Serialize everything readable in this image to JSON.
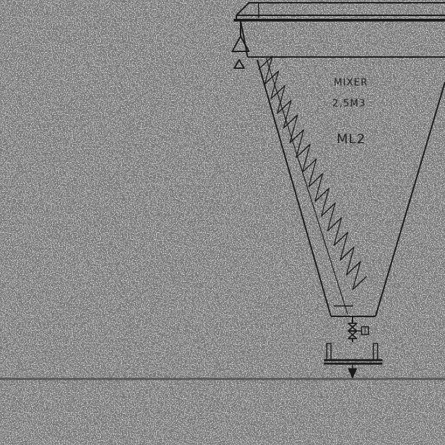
{
  "diagram": {
    "equipment": {
      "type_label": "MIXER",
      "capacity_label": "2,5M3",
      "tag_label": "ML2"
    },
    "colors": {
      "line": "#1a1a1a",
      "background": "#ffffff",
      "floor": "#555555"
    }
  }
}
